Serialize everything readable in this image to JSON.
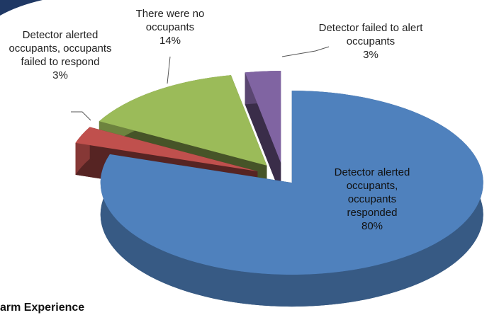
{
  "chart_data": {
    "type": "pie3d",
    "categories": [
      "Detector alerted occupants, occupants responded",
      "Detector alerted occupants, occupants failed to respond",
      "There were no occupants",
      "Detector failed to alert occupants"
    ],
    "values": [
      80,
      3,
      14,
      3
    ],
    "value_labels": [
      "80%",
      "3%",
      "14%",
      "3%"
    ],
    "colors": [
      "#4f81bd",
      "#c0504d",
      "#9bbb59",
      "#8064a2"
    ],
    "caption": "arm Experience"
  }
}
